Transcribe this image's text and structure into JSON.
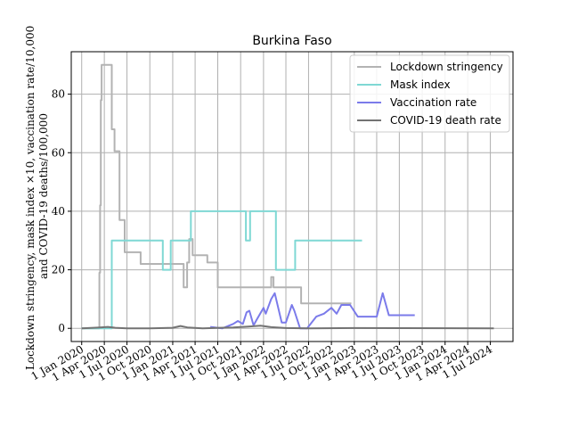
{
  "chart_data": {
    "type": "line",
    "title": "Burkina Faso",
    "ylabel_lines": [
      "Lockdown stringency, mask index ×10, vaccination rate/10,000",
      "and COVID-19 deaths/100,000"
    ],
    "xlabel": "",
    "ylim": [
      -4.5,
      94.5
    ],
    "yticks": [
      0,
      20,
      40,
      60,
      80
    ],
    "xlim": [
      "2019-11-20",
      "2024-09-30"
    ],
    "xticks": [
      {
        "date": "2020-01-01",
        "label": "1 Jan 2020"
      },
      {
        "date": "2020-04-01",
        "label": "1 Apr 2020"
      },
      {
        "date": "2020-07-01",
        "label": "1 Jul 2020"
      },
      {
        "date": "2020-10-01",
        "label": "1 Oct 2020"
      },
      {
        "date": "2021-01-01",
        "label": "1 Jan 2021"
      },
      {
        "date": "2021-04-01",
        "label": "1 Apr 2021"
      },
      {
        "date": "2021-07-01",
        "label": "1 Jul 2021"
      },
      {
        "date": "2021-10-01",
        "label": "1 Oct 2021"
      },
      {
        "date": "2022-01-01",
        "label": "1 Jan 2022"
      },
      {
        "date": "2022-04-01",
        "label": "1 Apr 2022"
      },
      {
        "date": "2022-07-01",
        "label": "1 Jul 2022"
      },
      {
        "date": "2022-10-01",
        "label": "1 Oct 2022"
      },
      {
        "date": "2023-01-01",
        "label": "1 Jan 2023"
      },
      {
        "date": "2023-04-01",
        "label": "1 Apr 2023"
      },
      {
        "date": "2023-07-01",
        "label": "1 Jul 2023"
      },
      {
        "date": "2023-10-01",
        "label": "1 Oct 2023"
      },
      {
        "date": "2024-01-01",
        "label": "1 Jan 2024"
      },
      {
        "date": "2024-04-01",
        "label": "1 Apr 2024"
      },
      {
        "date": "2024-07-01",
        "label": "1 Jul 2024"
      }
    ],
    "grid": true,
    "legend_position": "top-right",
    "series": [
      {
        "name": "Lockdown stringency",
        "color": "#b3b3b3",
        "step": true,
        "points": [
          [
            "2020-01-01",
            0
          ],
          [
            "2020-03-10",
            0
          ],
          [
            "2020-03-12",
            19
          ],
          [
            "2020-03-15",
            42
          ],
          [
            "2020-03-18",
            78
          ],
          [
            "2020-03-21",
            90
          ],
          [
            "2020-04-30",
            90
          ],
          [
            "2020-05-01",
            68
          ],
          [
            "2020-05-12",
            60.5
          ],
          [
            "2020-06-01",
            37
          ],
          [
            "2020-06-22",
            26
          ],
          [
            "2020-08-25",
            22
          ],
          [
            "2021-02-14",
            14
          ],
          [
            "2021-02-28",
            22.5
          ],
          [
            "2021-03-08",
            30.5
          ],
          [
            "2021-03-22",
            25
          ],
          [
            "2021-05-20",
            22.5
          ],
          [
            "2021-07-01",
            14
          ],
          [
            "2022-02-01",
            17.5
          ],
          [
            "2022-02-10",
            14
          ],
          [
            "2022-06-01",
            8.5
          ],
          [
            "2022-12-20",
            8.5
          ]
        ]
      },
      {
        "name": "Mask index",
        "color": "#7fd8d4",
        "step": true,
        "points": [
          [
            "2020-01-01",
            0
          ],
          [
            "2020-04-28",
            0
          ],
          [
            "2020-05-01",
            30
          ],
          [
            "2020-11-22",
            20
          ],
          [
            "2020-12-24",
            30
          ],
          [
            "2021-03-15",
            40
          ],
          [
            "2021-10-22",
            30
          ],
          [
            "2021-11-08",
            40
          ],
          [
            "2022-02-20",
            20
          ],
          [
            "2022-05-08",
            30
          ],
          [
            "2023-02-01",
            30
          ]
        ]
      },
      {
        "name": "Vaccination rate",
        "color": "#7b7bea",
        "step": false,
        "points": [
          [
            "2021-06-01",
            0.5
          ],
          [
            "2021-07-20",
            0
          ],
          [
            "2021-09-01",
            1.5
          ],
          [
            "2021-09-20",
            2.5
          ],
          [
            "2021-10-10",
            1.5
          ],
          [
            "2021-10-25",
            5.5
          ],
          [
            "2021-11-05",
            6
          ],
          [
            "2021-11-22",
            1
          ],
          [
            "2021-12-05",
            3
          ],
          [
            "2022-01-01",
            7
          ],
          [
            "2022-01-10",
            5
          ],
          [
            "2022-02-01",
            10
          ],
          [
            "2022-02-15",
            12
          ],
          [
            "2022-03-15",
            2
          ],
          [
            "2022-04-01",
            2
          ],
          [
            "2022-04-25",
            8
          ],
          [
            "2022-05-05",
            6
          ],
          [
            "2022-05-28",
            0
          ],
          [
            "2022-06-25",
            0
          ],
          [
            "2022-08-01",
            4
          ],
          [
            "2022-09-01",
            5
          ],
          [
            "2022-10-01",
            7
          ],
          [
            "2022-10-22",
            5
          ],
          [
            "2022-11-10",
            8
          ],
          [
            "2022-12-15",
            8
          ],
          [
            "2023-01-15",
            4
          ],
          [
            "2023-04-01",
            4
          ],
          [
            "2023-04-25",
            12
          ],
          [
            "2023-05-20",
            4.5
          ],
          [
            "2023-09-01",
            4.5
          ]
        ]
      },
      {
        "name": "COVID-19 death rate",
        "color": "#737373",
        "step": false,
        "points": [
          [
            "2020-01-01",
            0
          ],
          [
            "2020-03-15",
            0.3
          ],
          [
            "2020-04-15",
            0.5
          ],
          [
            "2020-05-15",
            0.2
          ],
          [
            "2020-07-01",
            0
          ],
          [
            "2020-10-01",
            0
          ],
          [
            "2021-01-01",
            0.2
          ],
          [
            "2021-02-01",
            0.8
          ],
          [
            "2021-03-01",
            0.3
          ],
          [
            "2021-05-01",
            0
          ],
          [
            "2021-09-01",
            0.3
          ],
          [
            "2021-11-01",
            0.6
          ],
          [
            "2021-12-20",
            0.9
          ],
          [
            "2022-02-01",
            0.4
          ],
          [
            "2022-04-01",
            0.1
          ],
          [
            "2022-07-01",
            0
          ],
          [
            "2023-01-01",
            0.1
          ],
          [
            "2024-07-15",
            0
          ]
        ]
      }
    ]
  }
}
